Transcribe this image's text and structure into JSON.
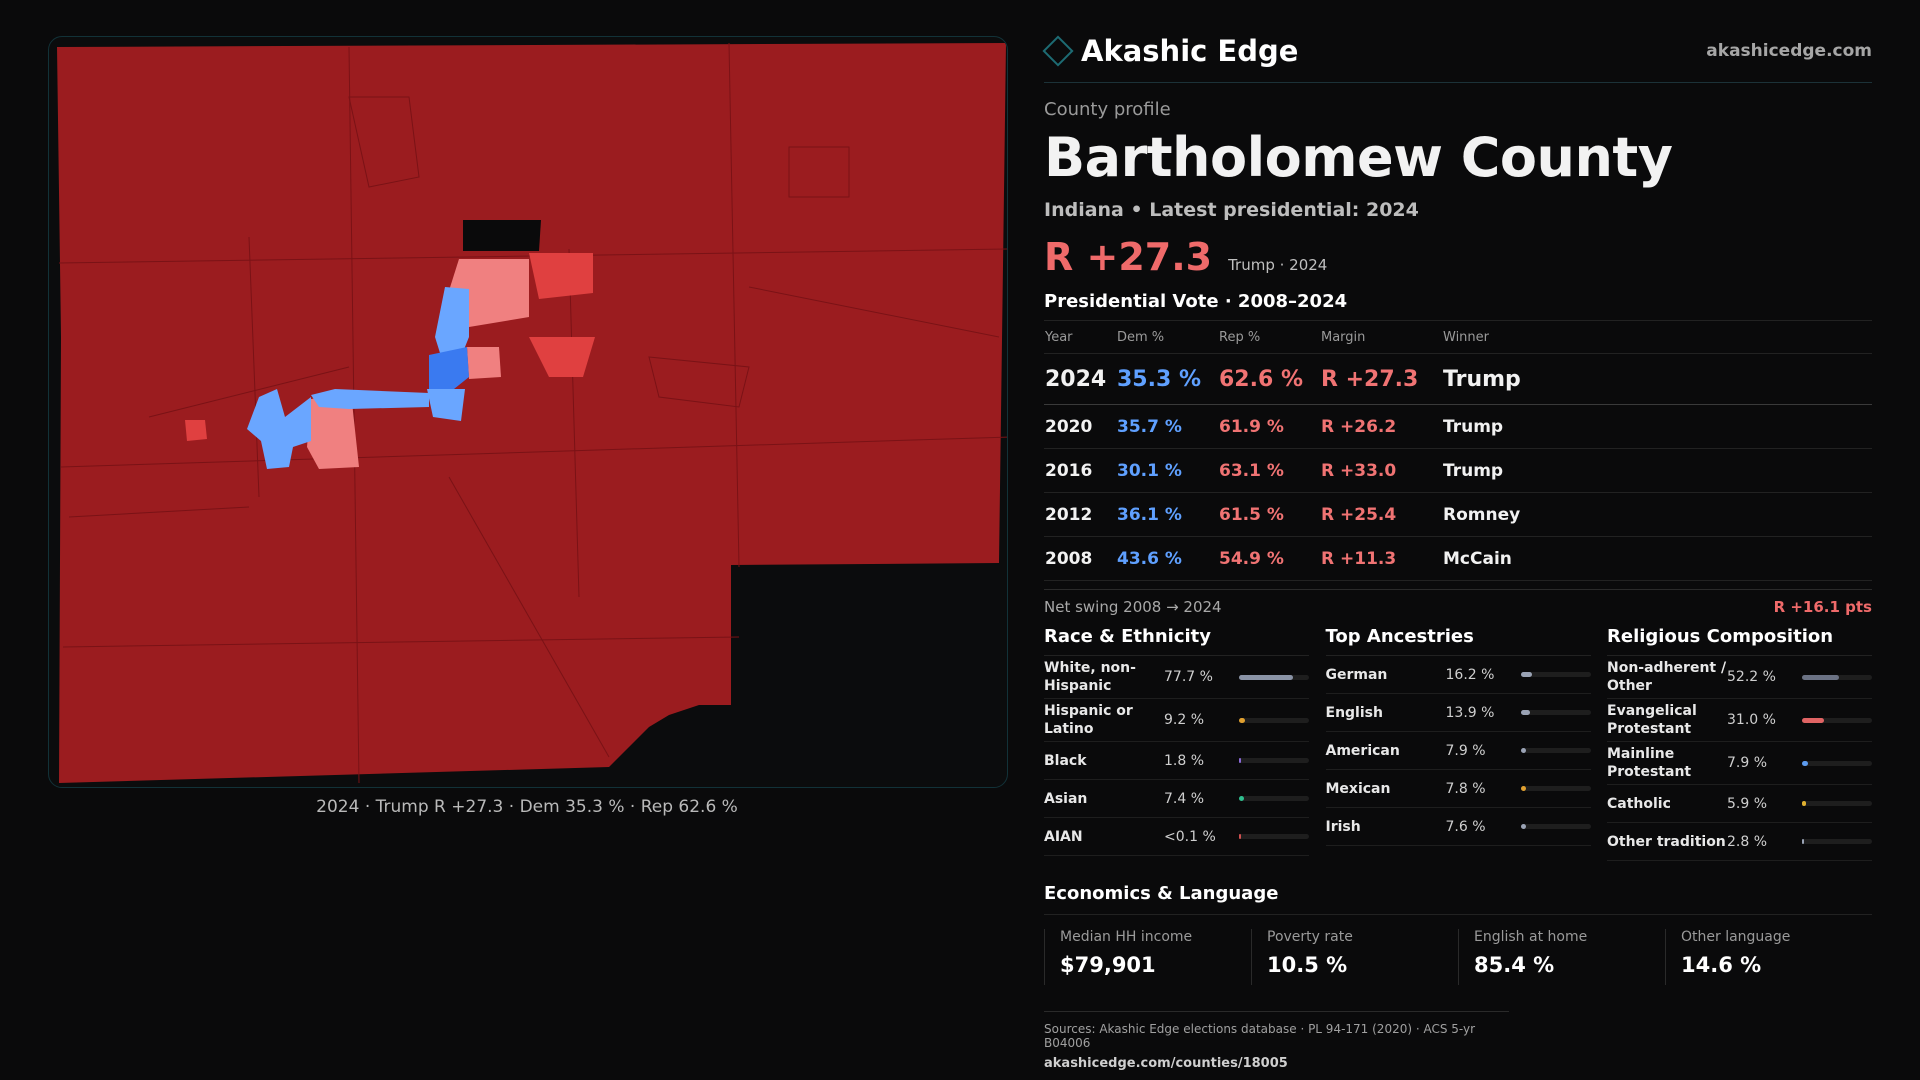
{
  "brand": {
    "name": "Akashic Edge",
    "url": "akashicedge.com"
  },
  "profile": {
    "eyebrow": "County profile",
    "county": "Bartholomew County",
    "subtitle": "Indiana • Latest presidential: 2024",
    "headline_margin": "R +27.3",
    "headline_sub": "Trump · 2024"
  },
  "map": {
    "caption": "2024 · Trump R +27.3 · Dem 35.3 % · Rep 62.6 %",
    "colors": {
      "rep_strong": "#9b1c1f",
      "rep_lean": "#f08080",
      "rep_mid": "#e04040",
      "dem_lean": "#6aa6ff",
      "dem_mid": "#3a7af0"
    }
  },
  "votes": {
    "title": "Presidential Vote · 2008–2024",
    "headers": {
      "year": "Year",
      "dem": "Dem %",
      "rep": "Rep %",
      "margin": "Margin",
      "winner": "Winner"
    },
    "rows": [
      {
        "year": "2024",
        "dem": "35.3 %",
        "rep": "62.6 %",
        "margin": "R +27.3",
        "winner": "Trump"
      },
      {
        "year": "2020",
        "dem": "35.7 %",
        "rep": "61.9 %",
        "margin": "R +26.2",
        "winner": "Trump"
      },
      {
        "year": "2016",
        "dem": "30.1 %",
        "rep": "63.1 %",
        "margin": "R +33.0",
        "winner": "Trump"
      },
      {
        "year": "2012",
        "dem": "36.1 %",
        "rep": "61.5 %",
        "margin": "R +25.4",
        "winner": "Romney"
      },
      {
        "year": "2008",
        "dem": "43.6 %",
        "rep": "54.9 %",
        "margin": "R +11.3",
        "winner": "McCain"
      }
    ],
    "swing_label": "Net swing 2008 → 2024",
    "swing_value": "R +16.1 pts"
  },
  "race": {
    "title": "Race & Ethnicity",
    "items": [
      {
        "label": "White, non-Hispanic",
        "value": "77.7 %",
        "pct": 77.7,
        "color": "#8a93a6"
      },
      {
        "label": "Hispanic or Latino",
        "value": "9.2 %",
        "pct": 9.2,
        "color": "#e0a030"
      },
      {
        "label": "Black",
        "value": "1.8 %",
        "pct": 1.8,
        "color": "#8b6ad8"
      },
      {
        "label": "Asian",
        "value": "7.4 %",
        "pct": 7.4,
        "color": "#2fbf8f"
      },
      {
        "label": "AIAN",
        "value": "<0.1 %",
        "pct": 0.05,
        "color": "#d05050"
      }
    ]
  },
  "ancestry": {
    "title": "Top Ancestries",
    "items": [
      {
        "label": "German",
        "value": "16.2 %",
        "pct": 16.2,
        "color": "#9aa3b5"
      },
      {
        "label": "English",
        "value": "13.9 %",
        "pct": 13.9,
        "color": "#9aa3b5"
      },
      {
        "label": "American",
        "value": "7.9 %",
        "pct": 7.9,
        "color": "#9aa3b5"
      },
      {
        "label": "Mexican",
        "value": "7.8 %",
        "pct": 7.8,
        "color": "#e0a030"
      },
      {
        "label": "Irish",
        "value": "7.6 %",
        "pct": 7.6,
        "color": "#9aa3b5"
      }
    ]
  },
  "religion": {
    "title": "Religious Composition",
    "items": [
      {
        "label": "Non-adherent / Other",
        "value": "52.2 %",
        "pct": 52.2,
        "color": "#6b7284"
      },
      {
        "label": "Evangelical Protestant",
        "value": "31.0 %",
        "pct": 31.0,
        "color": "#e06464"
      },
      {
        "label": "Mainline Protestant",
        "value": "7.9 %",
        "pct": 7.9,
        "color": "#5c9bef"
      },
      {
        "label": "Catholic",
        "value": "5.9 %",
        "pct": 5.9,
        "color": "#e0b030"
      },
      {
        "label": "Other tradition",
        "value": "2.8 %",
        "pct": 2.8,
        "color": "#9aa3b5"
      }
    ]
  },
  "economics": {
    "title": "Economics & Language",
    "stats": [
      {
        "label": "Median HH income",
        "value": "$79,901"
      },
      {
        "label": "Poverty rate",
        "value": "10.5 %"
      },
      {
        "label": "English at home",
        "value": "85.4 %"
      },
      {
        "label": "Other language",
        "value": "14.6 %"
      }
    ]
  },
  "sources": {
    "text": "Sources: Akashic Edge elections database · PL 94-171 (2020) · ACS 5-yr B04006",
    "url": "akashicedge.com/counties/18005"
  }
}
